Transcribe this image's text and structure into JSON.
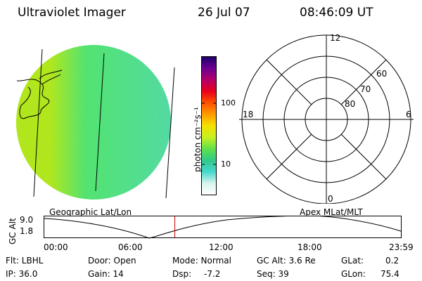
{
  "header": {
    "instrument": "Ultraviolet Imager",
    "date": "26 Jul 07",
    "time": "08:46:09 UT"
  },
  "colorbar": {
    "tick_100": "100",
    "tick_10": "10",
    "unit_label": "photon cm⁻²s⁻¹"
  },
  "polar": {
    "mlt_top": "12",
    "mlt_bottom": "0",
    "mlt_left": "18",
    "mlt_right": "6",
    "lat_60": "60",
    "lat_70": "70",
    "lat_80": "80"
  },
  "image_caption": "Geographic Lat/Lon",
  "polar_caption": "Apex MLat/MLT",
  "altitude_plot": {
    "ylabel": "GC Alt",
    "y_top": "9.0",
    "y_bottom": "1.8",
    "x_ticks": [
      "00:00",
      "06:00",
      "12:00",
      "18:00",
      "23:59"
    ],
    "current_time_fraction": 0.366,
    "marker_color": "#cc0000"
  },
  "footer": {
    "flt": "Flt: LBHL",
    "ip": "IP: 36.0",
    "door": "Door: Open",
    "gain": "Gain: 14",
    "mode": "Mode: Normal",
    "dsp_label": "Dsp:",
    "dsp_value": "-7.2",
    "gc_alt": "GC Alt: 3.6 Re",
    "seq": "Seq: 39",
    "glat_label": "GLat:",
    "glat_value": "0.2",
    "glon_label": "GLon:",
    "glon_value": "75.4"
  },
  "colors": {
    "image_bright": "#b8e60c",
    "image_mid": "#4ee26a",
    "image_dim": "#4fd8a2",
    "colorbar_stops": [
      "#ffffff",
      "#d9f4ee",
      "#44d8cc",
      "#31c98a",
      "#5fe04a",
      "#c9f020",
      "#f4e200",
      "#ff9a00",
      "#ff5000",
      "#e8001c",
      "#b3006a",
      "#6a0090",
      "#1a0066"
    ]
  }
}
